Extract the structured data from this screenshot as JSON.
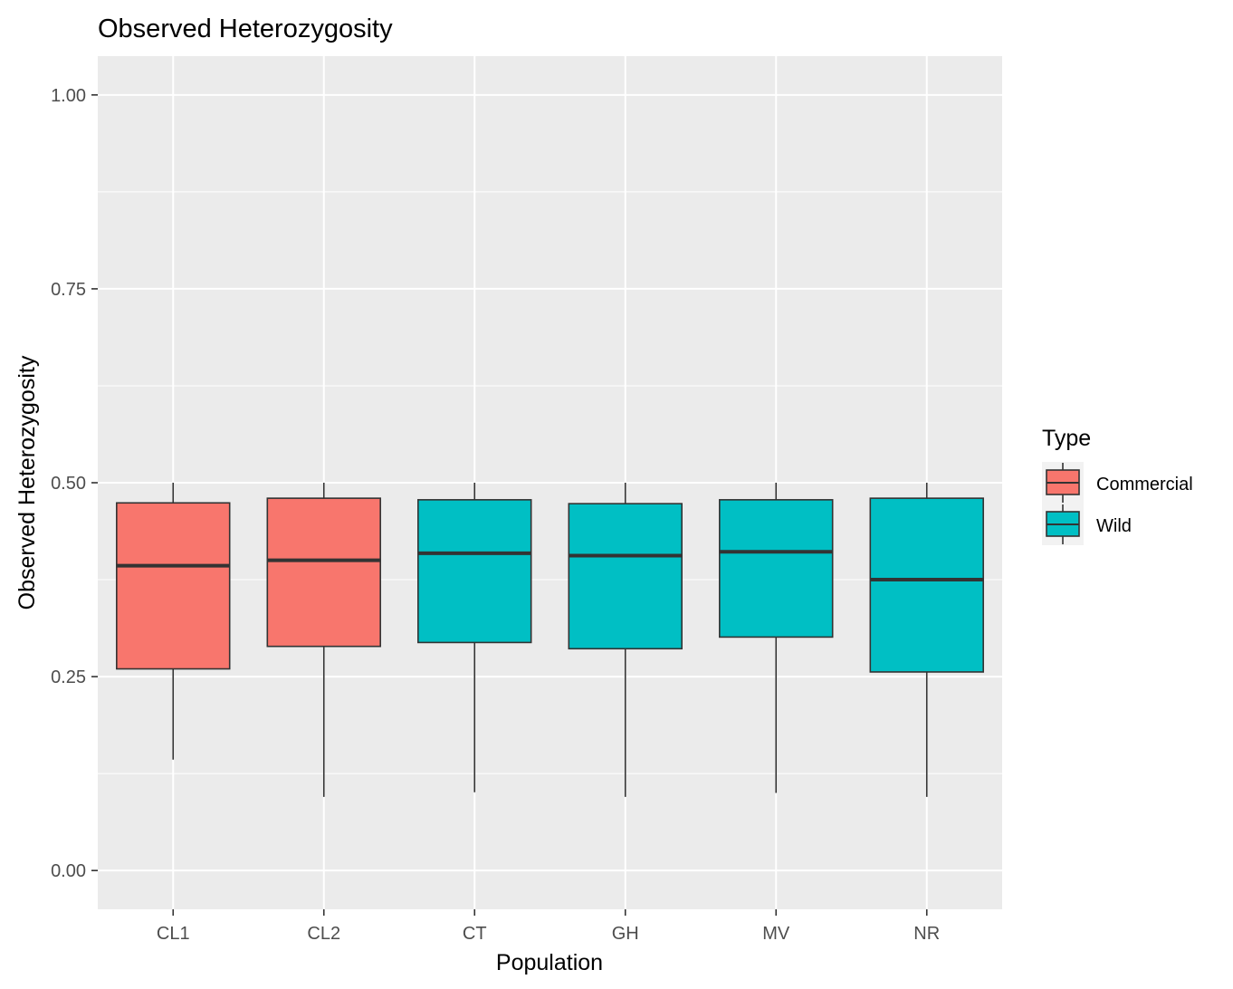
{
  "chart_data": {
    "type": "boxplot",
    "title": "Observed Heterozygosity",
    "xlabel": "Population",
    "ylabel": "Observed Heterozygosity",
    "ylim": [
      -0.05,
      1.05
    ],
    "yticks": [
      0.0,
      0.25,
      0.5,
      0.75,
      1.0
    ],
    "ytick_labels": [
      "0.00",
      "0.25",
      "0.50",
      "0.75",
      "1.00"
    ],
    "categories": [
      "CL1",
      "CL2",
      "CT",
      "GH",
      "MV",
      "NR"
    ],
    "grid": true,
    "legend": {
      "title": "Type",
      "position": "right",
      "entries": [
        {
          "label": "Commercial",
          "color": "#F8766D"
        },
        {
          "label": "Wild",
          "color": "#00BFC4"
        }
      ]
    },
    "boxes": [
      {
        "category": "CL1",
        "type": "Commercial",
        "min": 0.143,
        "q1": 0.26,
        "median": 0.393,
        "q3": 0.474,
        "max": 0.5
      },
      {
        "category": "CL2",
        "type": "Commercial",
        "min": 0.095,
        "q1": 0.289,
        "median": 0.4,
        "q3": 0.48,
        "max": 0.5
      },
      {
        "category": "CT",
        "type": "Wild",
        "min": 0.101,
        "q1": 0.294,
        "median": 0.409,
        "q3": 0.478,
        "max": 0.5
      },
      {
        "category": "GH",
        "type": "Wild",
        "min": 0.095,
        "q1": 0.286,
        "median": 0.406,
        "q3": 0.473,
        "max": 0.5
      },
      {
        "category": "MV",
        "type": "Wild",
        "min": 0.1,
        "q1": 0.301,
        "median": 0.411,
        "q3": 0.478,
        "max": 0.5
      },
      {
        "category": "NR",
        "type": "Wild",
        "min": 0.095,
        "q1": 0.256,
        "median": 0.375,
        "q3": 0.48,
        "max": 0.5
      }
    ]
  }
}
